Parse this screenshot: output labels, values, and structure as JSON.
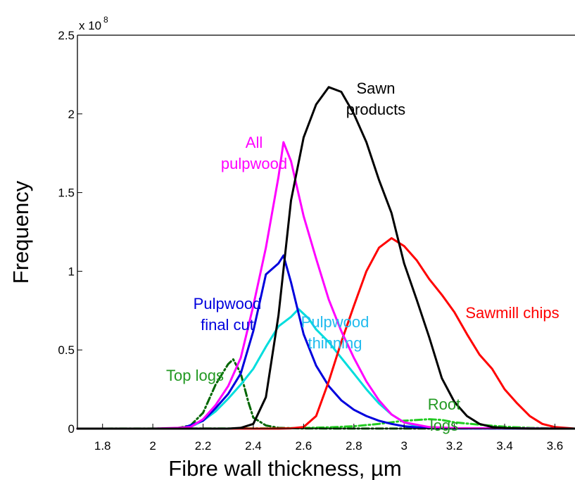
{
  "chart_data": {
    "type": "line",
    "title": "",
    "xlabel": "Fibre wall thickness, µm",
    "ylabel": "Frequency",
    "y_multiplier_label": "x 10",
    "y_multiplier_exponent": "8",
    "xlim": [
      1.7,
      3.68
    ],
    "ylim": [
      0,
      2.5
    ],
    "x_ticks": [
      "1.8",
      "2",
      "2.2",
      "2.4",
      "2.6",
      "2.8",
      "3",
      "3.2",
      "3.4",
      "3.6"
    ],
    "x_tick_values": [
      1.8,
      2.0,
      2.2,
      2.4,
      2.6,
      2.8,
      3.0,
      3.2,
      3.4,
      3.6
    ],
    "y_ticks": [
      "0",
      "0.5",
      "1",
      "1.5",
      "2",
      "2.5"
    ],
    "y_tick_values": [
      0,
      0.5,
      1,
      1.5,
      2,
      2.5
    ],
    "grid": false,
    "series": [
      {
        "name": "All pulpwood",
        "label_lines": [
          "All",
          "pulpwood"
        ],
        "color": "#ff00ff",
        "style": "solid",
        "x": [
          1.7,
          2.0,
          2.1,
          2.15,
          2.2,
          2.25,
          2.3,
          2.35,
          2.4,
          2.45,
          2.5,
          2.52,
          2.55,
          2.6,
          2.65,
          2.7,
          2.75,
          2.8,
          2.85,
          2.9,
          2.95,
          3.0,
          3.1,
          3.2,
          3.68
        ],
        "y": [
          0,
          0,
          0.005,
          0.01,
          0.06,
          0.15,
          0.27,
          0.45,
          0.78,
          1.15,
          1.6,
          1.82,
          1.7,
          1.35,
          1.08,
          0.82,
          0.62,
          0.45,
          0.3,
          0.18,
          0.09,
          0.04,
          0.01,
          0.003,
          0
        ]
      },
      {
        "name": "Sawn products",
        "label_lines": [
          "Sawn",
          "products"
        ],
        "color": "#000000",
        "style": "solid",
        "x": [
          1.7,
          2.3,
          2.35,
          2.4,
          2.45,
          2.5,
          2.55,
          2.6,
          2.65,
          2.7,
          2.75,
          2.8,
          2.85,
          2.9,
          2.95,
          3.0,
          3.05,
          3.1,
          3.15,
          3.2,
          3.25,
          3.3,
          3.35,
          3.4,
          3.5,
          3.68
        ],
        "y": [
          0,
          0,
          0.005,
          0.03,
          0.2,
          0.72,
          1.45,
          1.85,
          2.06,
          2.17,
          2.14,
          2.0,
          1.82,
          1.58,
          1.37,
          1.05,
          0.82,
          0.58,
          0.32,
          0.17,
          0.08,
          0.03,
          0.01,
          0.003,
          0,
          0
        ]
      },
      {
        "name": "Sawmill chips",
        "label_lines": [
          "Sawmill chips"
        ],
        "color": "#ff0000",
        "style": "solid",
        "x": [
          1.7,
          2.5,
          2.55,
          2.6,
          2.65,
          2.7,
          2.75,
          2.8,
          2.85,
          2.9,
          2.95,
          3.0,
          3.05,
          3.1,
          3.15,
          3.2,
          3.25,
          3.3,
          3.35,
          3.4,
          3.45,
          3.5,
          3.55,
          3.6,
          3.68
        ],
        "y": [
          0,
          0,
          0.002,
          0.01,
          0.08,
          0.3,
          0.55,
          0.78,
          1.0,
          1.15,
          1.21,
          1.16,
          1.07,
          0.95,
          0.85,
          0.74,
          0.6,
          0.47,
          0.38,
          0.25,
          0.16,
          0.08,
          0.03,
          0.01,
          0
        ]
      },
      {
        "name": "Pulpwood final cut",
        "label_lines": [
          "Pulpwood",
          "final cut"
        ],
        "color": "#0000dd",
        "style": "solid",
        "x": [
          1.7,
          2.05,
          2.12,
          2.2,
          2.25,
          2.3,
          2.35,
          2.4,
          2.45,
          2.5,
          2.52,
          2.55,
          2.6,
          2.65,
          2.7,
          2.75,
          2.8,
          2.85,
          2.9,
          2.95,
          3.0,
          3.05,
          3.1,
          3.2,
          3.68
        ],
        "y": [
          0,
          0,
          0.005,
          0.05,
          0.13,
          0.22,
          0.35,
          0.62,
          0.98,
          1.05,
          1.1,
          0.93,
          0.6,
          0.4,
          0.27,
          0.18,
          0.12,
          0.08,
          0.05,
          0.03,
          0.015,
          0.008,
          0.003,
          0.001,
          0
        ]
      },
      {
        "name": "Pulpwood thinning",
        "label_lines": [
          "Pulpwood",
          "thinning"
        ],
        "color": "#00dddd",
        "style": "solid",
        "x": [
          1.7,
          2.1,
          2.15,
          2.2,
          2.25,
          2.3,
          2.35,
          2.4,
          2.45,
          2.5,
          2.55,
          2.58,
          2.62,
          2.65,
          2.7,
          2.75,
          2.8,
          2.85,
          2.9,
          2.95,
          3.0,
          3.05,
          3.1,
          3.2,
          3.68
        ],
        "y": [
          0,
          0,
          0.01,
          0.05,
          0.11,
          0.19,
          0.28,
          0.38,
          0.52,
          0.65,
          0.71,
          0.76,
          0.7,
          0.63,
          0.55,
          0.45,
          0.35,
          0.25,
          0.16,
          0.09,
          0.04,
          0.015,
          0.005,
          0.001,
          0
        ]
      },
      {
        "name": "Top logs",
        "label_lines": [
          "Top logs"
        ],
        "color": "#006600",
        "style": "dashdot",
        "x": [
          1.7,
          2.05,
          2.1,
          2.15,
          2.2,
          2.25,
          2.3,
          2.32,
          2.35,
          2.38,
          2.4,
          2.45,
          2.5,
          2.6,
          3.68
        ],
        "y": [
          0,
          0,
          0.004,
          0.02,
          0.1,
          0.28,
          0.41,
          0.44,
          0.35,
          0.17,
          0.07,
          0.02,
          0.005,
          0.001,
          0
        ]
      },
      {
        "name": "Root logs",
        "label_lines": [
          "Root",
          "logs"
        ],
        "color": "#22cc22",
        "style": "dashdot",
        "x": [
          1.7,
          2.5,
          2.6,
          2.7,
          2.8,
          2.9,
          3.0,
          3.05,
          3.1,
          3.15,
          3.2,
          3.3,
          3.4,
          3.5,
          3.6,
          3.68
        ],
        "y": [
          0,
          0.002,
          0.004,
          0.008,
          0.015,
          0.03,
          0.05,
          0.055,
          0.06,
          0.055,
          0.04,
          0.025,
          0.012,
          0.005,
          0.002,
          0
        ]
      }
    ]
  }
}
